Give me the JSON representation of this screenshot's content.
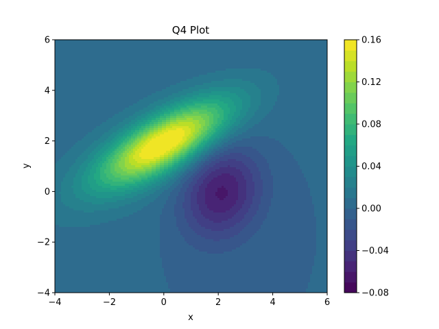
{
  "chart_data": {
    "type": "contourf",
    "title": "Q4 Plot",
    "xlabel": "x",
    "ylabel": "y",
    "xlim": [
      -4,
      6
    ],
    "ylim": [
      -4,
      6
    ],
    "xticks": [
      -4,
      -2,
      0,
      2,
      4,
      6
    ],
    "yticks": [
      -4,
      -2,
      0,
      2,
      4,
      6
    ],
    "xtick_labels": [
      "−4",
      "−2",
      "0",
      "2",
      "4",
      "6"
    ],
    "ytick_labels": [
      "−4",
      "−2",
      "0",
      "2",
      "4",
      "6"
    ],
    "colormap": "viridis",
    "levels": [
      -0.08,
      -0.07,
      -0.06,
      -0.05,
      -0.04,
      -0.03,
      -0.02,
      -0.01,
      0.0,
      0.01,
      0.02,
      0.03,
      0.04,
      0.05,
      0.06,
      0.07,
      0.08,
      0.09,
      0.1,
      0.11,
      0.12,
      0.13,
      0.14,
      0.15,
      0.16
    ],
    "colorbar_ticks": [
      -0.08,
      -0.04,
      0.0,
      0.04,
      0.08,
      0.12,
      0.16
    ],
    "colorbar_tick_labels": [
      "−0.08",
      "−0.04",
      "0.00",
      "0.04",
      "0.08",
      "0.12",
      "0.16"
    ],
    "components": [
      {
        "kind": "positive",
        "amplitude": 0.16,
        "center": [
          0.0,
          1.9
        ],
        "sigma_major": 1.9,
        "sigma_minor": 0.7,
        "angle_deg": 32
      },
      {
        "kind": "negative",
        "amplitude": -0.065,
        "center": [
          2.1,
          0.0
        ],
        "sigma_major": 1.3,
        "sigma_minor": 1.0,
        "angle_deg": 75
      },
      {
        "kind": "positive-plume",
        "amplitude": 0.012,
        "center": [
          -1.0,
          1.2
        ],
        "sigma_major": 4.0,
        "sigma_minor": 1.8,
        "angle_deg": 30
      }
    ],
    "grid": false,
    "legend": "colorbar-right"
  }
}
